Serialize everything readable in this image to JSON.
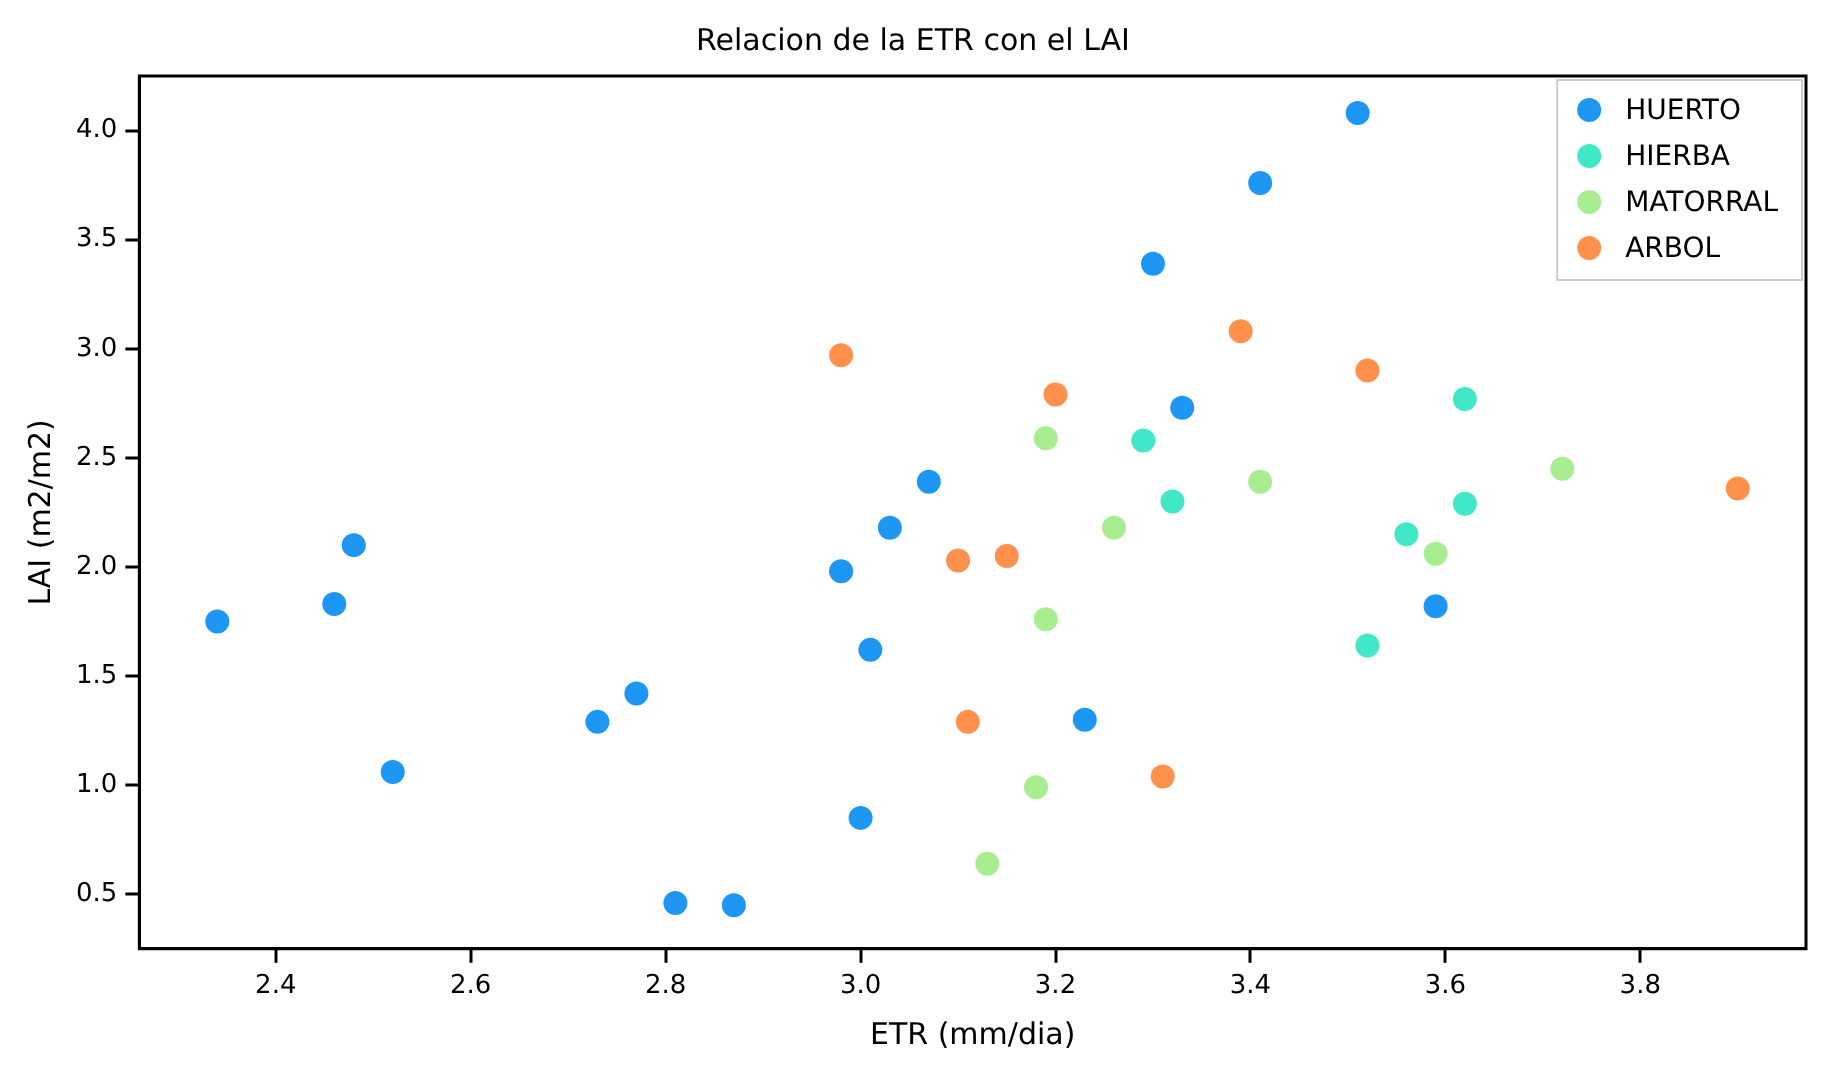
{
  "chart_data": {
    "type": "scatter",
    "title": "Relacion de la ETR con el LAI",
    "xlabel": "ETR (mm/dia)",
    "ylabel": "LAI (m2/m2)",
    "xlim": [
      2.26,
      3.97
    ],
    "xticks": [
      2.4,
      2.6,
      2.8,
      {
        "value": 3,
        "label": "3.0"
      },
      3.2,
      3.4,
      3.6,
      3.8
    ],
    "ylim": [
      0.25,
      4.25
    ],
    "yticks": [
      0.5,
      {
        "value": 1,
        "label": "1.0"
      },
      1.5,
      {
        "value": 2,
        "label": "2.0"
      },
      2.5,
      {
        "value": 3,
        "label": "3.0"
      },
      3.5,
      {
        "value": 4,
        "label": "4.0"
      }
    ],
    "grid": false,
    "legend": "top right",
    "marker": "circle",
    "series": [
      {
        "name": "HUERTO",
        "color": "#1e96f3",
        "x": [
          2.34,
          2.46,
          2.48,
          2.52,
          2.73,
          2.77,
          2.81,
          2.87,
          2.98,
          3.0,
          3.01,
          3.03,
          3.07,
          3.23,
          3.3,
          3.33,
          3.41,
          3.51,
          3.59
        ],
        "values": [
          1.75,
          1.83,
          2.1,
          1.06,
          1.29,
          1.42,
          0.46,
          0.45,
          1.98,
          0.85,
          1.62,
          2.18,
          2.39,
          1.3,
          3.39,
          2.73,
          3.76,
          4.08,
          1.82
        ]
      },
      {
        "name": "HIERBA",
        "color": "#40e8c8",
        "x": [
          3.29,
          3.32,
          3.52,
          3.56,
          3.62,
          3.62
        ],
        "values": [
          2.58,
          2.3,
          1.64,
          2.15,
          2.77,
          2.29
        ]
      },
      {
        "name": "MATORRAL",
        "color": "#a8ee90",
        "x": [
          3.13,
          3.18,
          3.19,
          3.19,
          3.26,
          3.41,
          3.59,
          3.72
        ],
        "values": [
          0.64,
          0.99,
          1.76,
          2.59,
          2.18,
          2.39,
          2.06,
          2.45
        ]
      },
      {
        "name": "ARBOL",
        "color": "#ff914d",
        "x": [
          2.98,
          3.1,
          3.11,
          3.15,
          3.2,
          3.31,
          3.39,
          3.52,
          3.9
        ],
        "values": [
          2.97,
          2.03,
          1.29,
          2.05,
          2.79,
          1.04,
          3.08,
          2.9,
          2.36
        ]
      }
    ]
  }
}
